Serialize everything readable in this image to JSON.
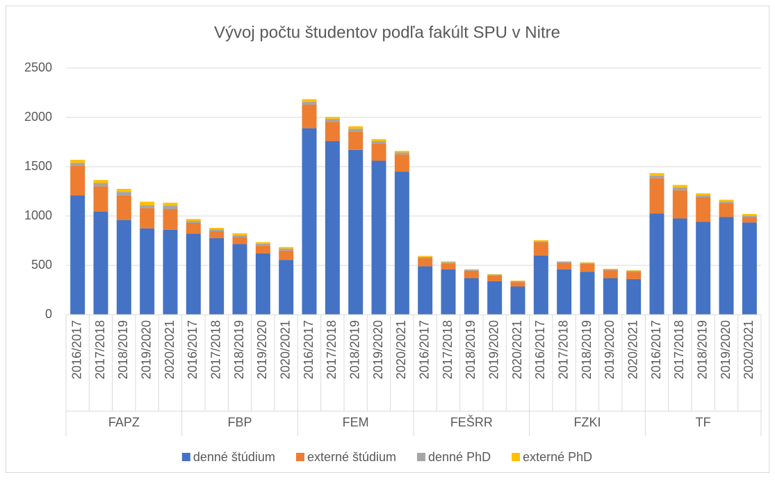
{
  "chart_data": {
    "type": "stacked_bar",
    "title": "Vývoj počtu študentov podľa fakúlt SPU v Nitre",
    "categories": [
      "2016/2017",
      "2017/2018",
      "2018/2019",
      "2019/2020",
      "2020/2021",
      "2016/2017",
      "2017/2018",
      "2018/2019",
      "2019/2020",
      "2020/2021",
      "2016/2017",
      "2017/2018",
      "2018/2019",
      "2019/2020",
      "2020/2021",
      "2016/2017",
      "2017/2018",
      "2018/2019",
      "2019/2020",
      "2020/2021",
      "2016/2017",
      "2017/2018",
      "2018/2019",
      "2019/2020",
      "2020/2021",
      "2016/2017",
      "2017/2018",
      "2018/2019",
      "2019/2020",
      "2020/2021"
    ],
    "category_groups": [
      "FAPZ",
      "FBP",
      "FEM",
      "FEŠRR",
      "FZKI",
      "TF"
    ],
    "series": [
      {
        "name": "denné štúdium",
        "color": "#4472c4",
        "values": [
          1210,
          1045,
          960,
          875,
          860,
          820,
          775,
          715,
          620,
          555,
          1890,
          1760,
          1670,
          1560,
          1450,
          490,
          460,
          370,
          340,
          285,
          600,
          460,
          435,
          370,
          360,
          1025,
          975,
          940,
          990,
          935
        ]
      },
      {
        "name": "externé štúdium",
        "color": "#ed7d31",
        "values": [
          300,
          255,
          250,
          205,
          210,
          110,
          70,
          70,
          80,
          95,
          240,
          195,
          185,
          175,
          175,
          85,
          60,
          75,
          55,
          45,
          135,
          65,
          80,
          80,
          75,
          360,
          285,
          250,
          140,
          55
        ]
      },
      {
        "name": "denné PhD",
        "color": "#a5a5a5",
        "values": [
          30,
          35,
          35,
          30,
          35,
          20,
          20,
          20,
          20,
          20,
          30,
          30,
          30,
          25,
          20,
          10,
          10,
          10,
          10,
          10,
          10,
          10,
          10,
          10,
          10,
          25,
          30,
          20,
          15,
          15
        ]
      },
      {
        "name": "externé PhD",
        "color": "#ffc000",
        "values": [
          30,
          30,
          30,
          35,
          30,
          20,
          15,
          20,
          15,
          15,
          25,
          20,
          25,
          20,
          15,
          10,
          10,
          5,
          5,
          5,
          10,
          5,
          5,
          5,
          5,
          25,
          25,
          20,
          20,
          15
        ]
      }
    ],
    "ylim": [
      0,
      2500
    ],
    "yticks": [
      0,
      500,
      1000,
      1500,
      2000,
      2500
    ],
    "grid": true,
    "legend": "bottom"
  }
}
